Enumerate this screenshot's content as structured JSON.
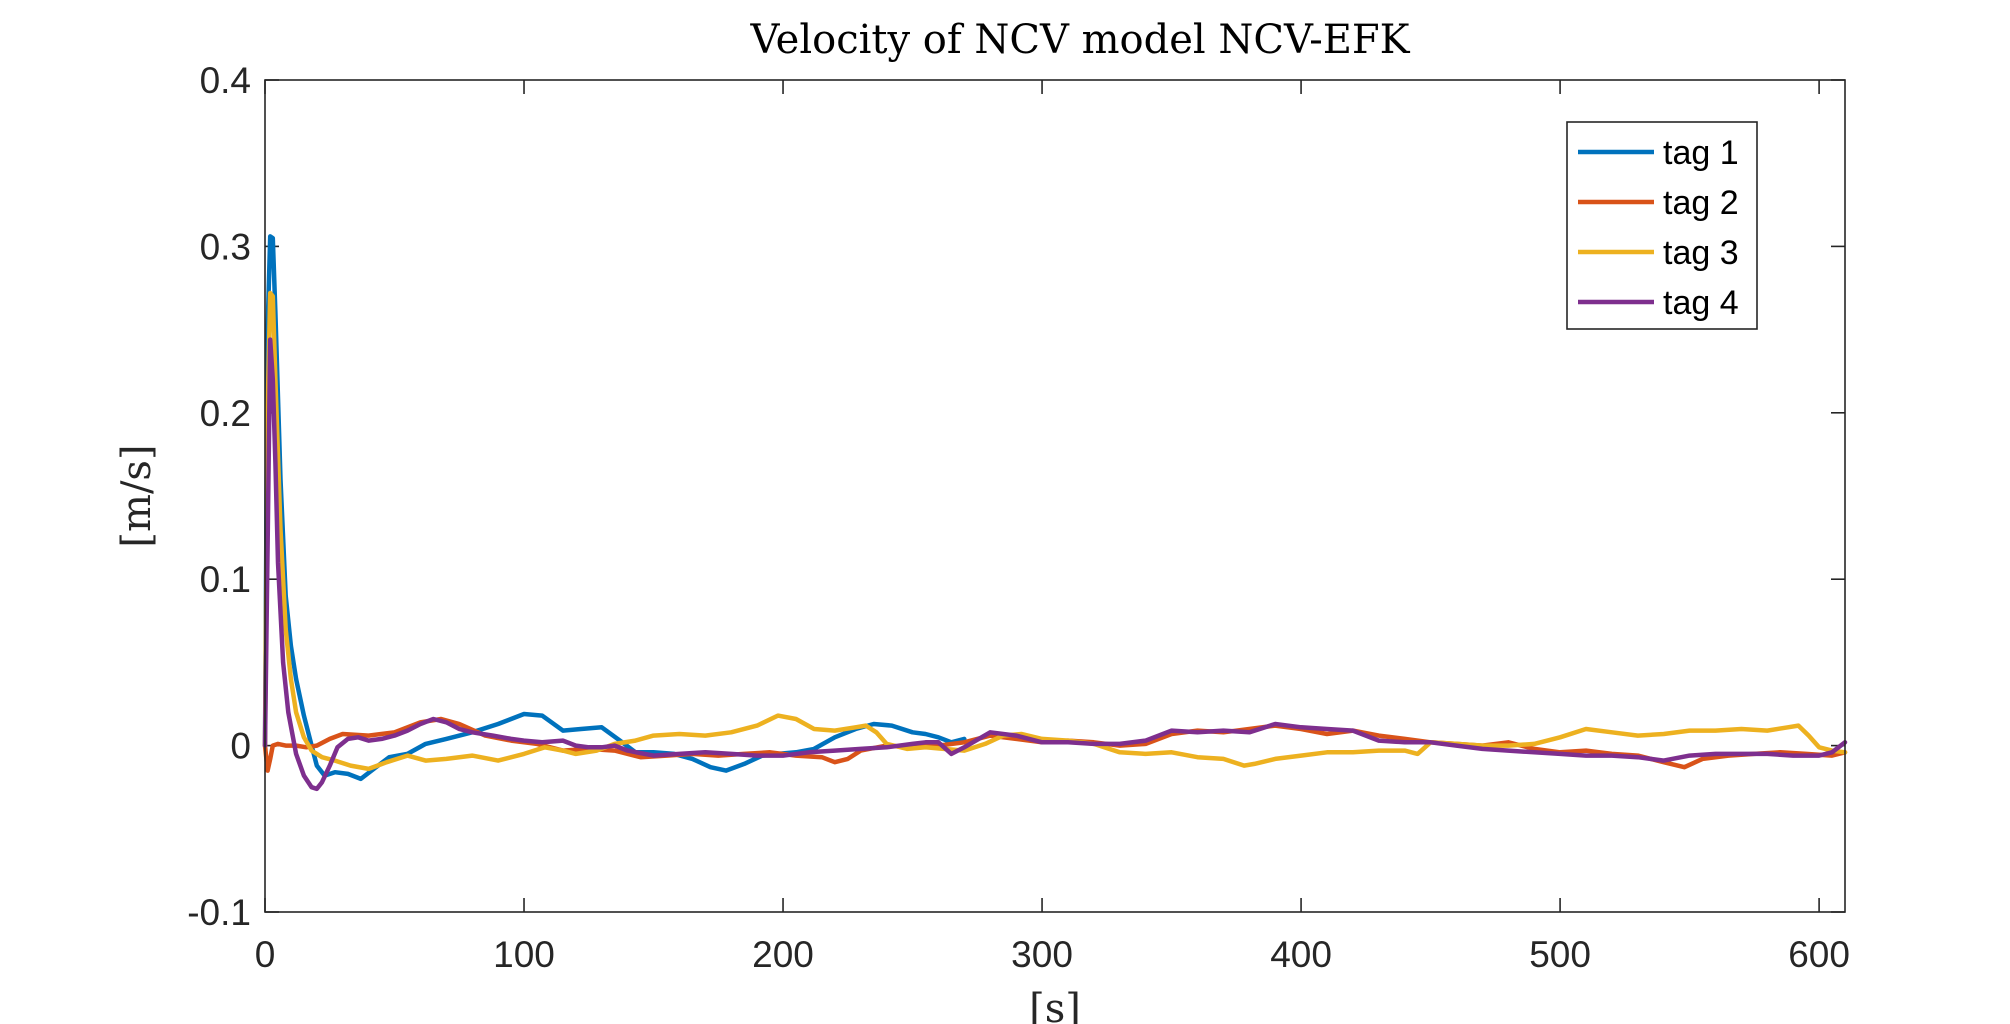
{
  "chart_data": {
    "type": "line",
    "title": "Velocity of NCV model NCV-EFK",
    "xlabel": "[s]",
    "ylabel": "[m/s]",
    "xlim": [
      0,
      610
    ],
    "ylim": [
      -0.1,
      0.4
    ],
    "xticks": [
      0,
      100,
      200,
      300,
      400,
      500,
      600
    ],
    "yticks": [
      -0.1,
      0,
      0.1,
      0.2,
      0.3,
      0.4
    ],
    "xtick_labels": [
      "0",
      "100",
      "200",
      "300",
      "400",
      "500",
      "600"
    ],
    "ytick_labels": [
      "-0.1",
      "0",
      "0.1",
      "0.2",
      "0.3",
      "0.4"
    ],
    "grid": false,
    "legend_position": "top-right",
    "series": [
      {
        "name": "tag 1",
        "color": "#0072BD",
        "x": [
          0,
          1,
          2,
          3,
          4,
          6,
          8,
          10,
          12,
          15,
          18,
          20,
          23,
          27,
          32,
          37,
          42,
          48,
          55,
          62,
          70,
          80,
          90,
          100,
          107,
          115,
          122,
          130,
          137,
          143,
          150,
          158,
          165,
          172,
          178,
          185,
          192,
          198,
          205,
          212,
          220,
          228,
          235,
          242,
          250,
          255,
          260,
          265,
          270
        ],
        "y": [
          0.0,
          0.25,
          0.306,
          0.305,
          0.26,
          0.16,
          0.09,
          0.06,
          0.04,
          0.018,
          0.0,
          -0.012,
          -0.018,
          -0.016,
          -0.017,
          -0.02,
          -0.014,
          -0.007,
          -0.005,
          0.001,
          0.004,
          0.008,
          0.013,
          0.019,
          0.018,
          0.009,
          0.01,
          0.011,
          0.003,
          -0.004,
          -0.004,
          -0.005,
          -0.008,
          -0.013,
          -0.015,
          -0.011,
          -0.006,
          -0.005,
          -0.004,
          -0.002,
          0.005,
          0.01,
          0.013,
          0.012,
          0.008,
          0.007,
          0.005,
          0.002,
          0.004
        ]
      },
      {
        "name": "tag 2",
        "color": "#D95319",
        "x": [
          0,
          1,
          2,
          3,
          5,
          8,
          12,
          16,
          20,
          25,
          30,
          40,
          50,
          60,
          68,
          75,
          85,
          95,
          105,
          115,
          125,
          135,
          145,
          155,
          165,
          175,
          185,
          195,
          205,
          215,
          220,
          225,
          230,
          240,
          250,
          260,
          270,
          280,
          290,
          300,
          310,
          320,
          330,
          340,
          350,
          360,
          370,
          380,
          390,
          400,
          410,
          420,
          430,
          440,
          450,
          460,
          470,
          480,
          490,
          500,
          510,
          520,
          530,
          540,
          548,
          555,
          565,
          575,
          585,
          595,
          605,
          610
        ],
        "y": [
          0.0,
          -0.015,
          -0.008,
          0.0,
          0.001,
          0.0,
          0.0,
          -0.001,
          0.0,
          0.004,
          0.007,
          0.006,
          0.008,
          0.014,
          0.016,
          0.013,
          0.006,
          0.003,
          0.001,
          -0.003,
          -0.002,
          -0.003,
          -0.007,
          -0.006,
          -0.005,
          -0.006,
          -0.005,
          -0.004,
          -0.006,
          -0.007,
          -0.01,
          -0.008,
          -0.003,
          0.0,
          -0.001,
          0.0,
          0.002,
          0.006,
          0.004,
          0.002,
          0.003,
          0.002,
          0.0,
          0.001,
          0.007,
          0.009,
          0.008,
          0.01,
          0.012,
          0.01,
          0.007,
          0.009,
          0.006,
          0.004,
          0.002,
          0.001,
          0.0,
          0.002,
          -0.002,
          -0.004,
          -0.003,
          -0.005,
          -0.006,
          -0.01,
          -0.013,
          -0.008,
          -0.006,
          -0.005,
          -0.004,
          -0.005,
          -0.006,
          -0.004
        ]
      },
      {
        "name": "tag 3",
        "color": "#EDB120",
        "x": [
          0,
          1,
          2,
          3,
          4,
          6,
          8,
          10,
          12,
          15,
          18,
          22,
          27,
          33,
          40,
          47,
          55,
          62,
          70,
          80,
          90,
          100,
          108,
          115,
          120,
          128,
          135,
          143,
          150,
          160,
          170,
          180,
          190,
          198,
          205,
          212,
          220,
          228,
          232,
          236,
          240,
          248,
          255,
          262,
          270,
          278,
          285,
          292,
          300,
          310,
          320,
          330,
          340,
          350,
          360,
          370,
          378,
          382,
          390,
          400,
          410,
          420,
          430,
          440,
          445,
          450,
          460,
          470,
          480,
          490,
          500,
          510,
          520,
          530,
          540,
          550,
          560,
          570,
          580,
          588,
          592,
          596,
          600,
          605,
          610
        ],
        "y": [
          0.0,
          0.2,
          0.272,
          0.27,
          0.22,
          0.13,
          0.07,
          0.04,
          0.02,
          0.005,
          -0.003,
          -0.007,
          -0.009,
          -0.012,
          -0.014,
          -0.01,
          -0.006,
          -0.009,
          -0.008,
          -0.006,
          -0.009,
          -0.005,
          -0.001,
          -0.003,
          -0.005,
          -0.003,
          0.001,
          0.003,
          0.006,
          0.007,
          0.006,
          0.008,
          0.012,
          0.018,
          0.016,
          0.01,
          0.009,
          0.011,
          0.012,
          0.008,
          0.001,
          -0.002,
          -0.001,
          -0.002,
          -0.003,
          0.001,
          0.006,
          0.007,
          0.004,
          0.003,
          0.001,
          -0.004,
          -0.005,
          -0.004,
          -0.007,
          -0.008,
          -0.012,
          -0.011,
          -0.008,
          -0.006,
          -0.004,
          -0.004,
          -0.003,
          -0.003,
          -0.005,
          0.002,
          0.001,
          0.0,
          0.0,
          0.001,
          0.005,
          0.01,
          0.008,
          0.006,
          0.007,
          0.009,
          0.009,
          0.01,
          0.009,
          0.011,
          0.012,
          0.006,
          -0.001,
          -0.003,
          -0.004
        ]
      },
      {
        "name": "tag 4",
        "color": "#7E2F8E",
        "x": [
          0,
          1,
          2,
          3,
          4,
          5,
          7,
          9,
          12,
          15,
          18,
          20,
          22,
          25,
          28,
          32,
          36,
          40,
          45,
          50,
          55,
          60,
          65,
          70,
          75,
          80,
          88,
          95,
          100,
          107,
          115,
          120,
          125,
          130,
          135,
          140,
          150,
          160,
          170,
          180,
          190,
          200,
          210,
          220,
          230,
          240,
          250,
          255,
          260,
          265,
          270,
          280,
          290,
          300,
          310,
          320,
          330,
          340,
          350,
          360,
          370,
          380,
          390,
          400,
          410,
          420,
          430,
          440,
          450,
          460,
          470,
          480,
          490,
          500,
          510,
          520,
          530,
          540,
          550,
          560,
          570,
          580,
          590,
          600,
          605,
          610
        ],
        "y": [
          0.0,
          0.12,
          0.244,
          0.22,
          0.17,
          0.11,
          0.05,
          0.02,
          -0.005,
          -0.018,
          -0.025,
          -0.026,
          -0.022,
          -0.012,
          -0.001,
          0.004,
          0.005,
          0.003,
          0.004,
          0.006,
          0.009,
          0.013,
          0.016,
          0.014,
          0.01,
          0.008,
          0.006,
          0.004,
          0.003,
          0.002,
          0.003,
          0.0,
          -0.001,
          -0.001,
          0.0,
          -0.003,
          -0.006,
          -0.005,
          -0.004,
          -0.005,
          -0.006,
          -0.006,
          -0.004,
          -0.003,
          -0.002,
          -0.001,
          0.001,
          0.002,
          0.002,
          -0.005,
          -0.001,
          0.008,
          0.006,
          0.002,
          0.002,
          0.001,
          0.001,
          0.003,
          0.009,
          0.008,
          0.009,
          0.008,
          0.013,
          0.011,
          0.01,
          0.009,
          0.003,
          0.002,
          0.002,
          0.0,
          -0.002,
          -0.003,
          -0.004,
          -0.005,
          -0.006,
          -0.006,
          -0.007,
          -0.009,
          -0.006,
          -0.005,
          -0.005,
          -0.005,
          -0.006,
          -0.006,
          -0.004,
          0.002
        ]
      }
    ]
  }
}
